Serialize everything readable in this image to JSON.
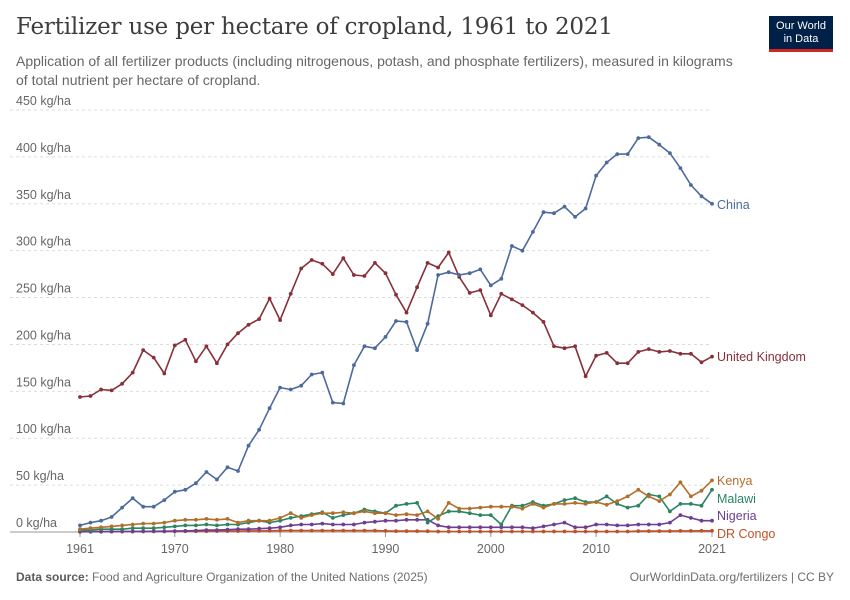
{
  "header": {
    "title": "Fertilizer use per hectare of cropland, 1961 to 2021",
    "subtitle": "Application of all fertilizer products (including nitrogenous, potash, and phosphate fertilizers), measured in kilograms of total nutrient per hectare of cropland."
  },
  "logo": {
    "line1": "Our World",
    "line2": "in Data"
  },
  "footer": {
    "source_label": "Data source:",
    "source_text": "Food and Agriculture Organization of the United Nations (2025)",
    "link": "OurWorldinData.org/fertilizers | CC BY"
  },
  "chart_data": {
    "type": "line",
    "title": "Fertilizer use per hectare of cropland, 1961 to 2021",
    "ylim": [
      0,
      450
    ],
    "xlim": [
      1961,
      2021
    ],
    "y_ticks": [
      0,
      50,
      100,
      150,
      200,
      250,
      300,
      350,
      400,
      450
    ],
    "y_tick_labels": [
      "0 kg/ha",
      "50 kg/ha",
      "100 kg/ha",
      "150 kg/ha",
      "200 kg/ha",
      "250 kg/ha",
      "300 kg/ha",
      "350 kg/ha",
      "400 kg/ha",
      "450 kg/ha"
    ],
    "x_ticks": [
      1961,
      1970,
      1980,
      1990,
      2000,
      2010,
      2021
    ],
    "x_tick_labels": [
      "1961",
      "1970",
      "1980",
      "1990",
      "2000",
      "2010",
      "2021"
    ],
    "grid": "horizontal dashed",
    "legend": "labels at line ends (right)",
    "x": [
      1961,
      1962,
      1963,
      1964,
      1965,
      1966,
      1967,
      1968,
      1969,
      1970,
      1971,
      1972,
      1973,
      1974,
      1975,
      1976,
      1977,
      1978,
      1979,
      1980,
      1981,
      1982,
      1983,
      1984,
      1985,
      1986,
      1987,
      1988,
      1989,
      1990,
      1991,
      1992,
      1993,
      1994,
      1995,
      1996,
      1997,
      1998,
      1999,
      2000,
      2001,
      2002,
      2003,
      2004,
      2005,
      2006,
      2007,
      2008,
      2009,
      2010,
      2011,
      2012,
      2013,
      2014,
      2015,
      2016,
      2017,
      2018,
      2019,
      2020,
      2021
    ],
    "series": [
      {
        "name": "China",
        "color": "#4c6a9c",
        "values": [
          7,
          10,
          12,
          16,
          26,
          36,
          27,
          27,
          34,
          43,
          45,
          52,
          64,
          56,
          69,
          65,
          92,
          109,
          132,
          154,
          152,
          156,
          168,
          170,
          138,
          137,
          178,
          198,
          196,
          208,
          225,
          224,
          194,
          222,
          274,
          277,
          274,
          276,
          280,
          263,
          270,
          305,
          300,
          320,
          341,
          340,
          347,
          336,
          345,
          380,
          394,
          403,
          403,
          420,
          421,
          413,
          404,
          388,
          370,
          358,
          350
        ]
      },
      {
        "name": "United Kingdom",
        "color": "#883039",
        "values": [
          144,
          145,
          152,
          151,
          158,
          170,
          194,
          186,
          169,
          199,
          205,
          182,
          198,
          180,
          200,
          212,
          221,
          227,
          249,
          226,
          254,
          281,
          290,
          286,
          275,
          292,
          274,
          273,
          287,
          276,
          253,
          234,
          261,
          287,
          282,
          298,
          272,
          255,
          258,
          231,
          254,
          248,
          242,
          234,
          224,
          198,
          196,
          198,
          166,
          188,
          191,
          180,
          180,
          192,
          195,
          192,
          193,
          190,
          190,
          181,
          187
        ]
      },
      {
        "name": "Kenya",
        "color": "#b16f2a",
        "values": [
          3,
          4,
          5,
          6,
          7,
          8,
          9,
          9,
          10,
          12,
          13,
          13,
          14,
          13,
          14,
          10,
          12,
          12,
          12,
          15,
          20,
          15,
          18,
          20,
          20,
          21,
          20,
          22,
          20,
          20,
          18,
          19,
          18,
          22,
          14,
          31,
          25,
          25,
          26,
          27,
          27,
          27,
          25,
          30,
          26,
          30,
          30,
          31,
          30,
          32,
          29,
          33,
          38,
          45,
          38,
          33,
          40,
          53,
          38,
          44,
          55
        ]
      },
      {
        "name": "Malawi",
        "color": "#2c8465",
        "values": [
          2,
          2,
          3,
          3,
          3,
          4,
          4,
          4,
          5,
          6,
          7,
          7,
          8,
          7,
          8,
          8,
          10,
          12,
          10,
          12,
          15,
          17,
          19,
          21,
          15,
          18,
          20,
          24,
          22,
          20,
          28,
          30,
          31,
          10,
          17,
          22,
          22,
          20,
          18,
          18,
          8,
          28,
          28,
          32,
          28,
          30,
          34,
          36,
          32,
          32,
          38,
          30,
          26,
          28,
          40,
          38,
          22,
          30,
          30,
          28,
          45
        ]
      },
      {
        "name": "Nigeria",
        "color": "#6d3e91",
        "values": [
          0.2,
          0.3,
          0.3,
          0.4,
          0.5,
          0.5,
          0.6,
          0.7,
          0.8,
          1,
          1.2,
          1.5,
          2,
          2,
          2.5,
          3,
          3,
          3.5,
          4,
          5,
          7,
          8,
          8,
          9,
          8,
          8,
          8,
          10,
          11,
          12,
          12,
          13,
          13,
          13,
          7,
          5,
          5,
          5,
          5,
          5,
          5,
          5,
          5,
          4,
          6,
          8,
          10,
          5,
          5,
          8,
          8,
          7,
          7,
          8,
          8,
          8,
          10,
          18,
          15,
          12,
          12
        ]
      },
      {
        "name": "DR Congo",
        "color": "#c15127",
        "values": [
          0.5,
          0.5,
          0.5,
          0.5,
          0.5,
          0.5,
          0.6,
          0.6,
          0.6,
          0.7,
          0.8,
          0.8,
          0.8,
          1,
          1,
          1,
          1.2,
          1.2,
          1.3,
          1.5,
          1.5,
          1.5,
          1.5,
          1.5,
          1.5,
          1.5,
          1.5,
          1.5,
          1.5,
          1.2,
          1,
          1,
          1,
          0.8,
          0.5,
          0.5,
          0.5,
          0.5,
          0.5,
          0.5,
          0.5,
          0.5,
          0.5,
          0.5,
          0.5,
          0.5,
          0.5,
          0.5,
          0.5,
          0.5,
          0.5,
          0.5,
          0.5,
          1,
          1,
          1,
          1,
          1.2,
          1.2,
          1.3,
          1.3
        ]
      }
    ]
  }
}
